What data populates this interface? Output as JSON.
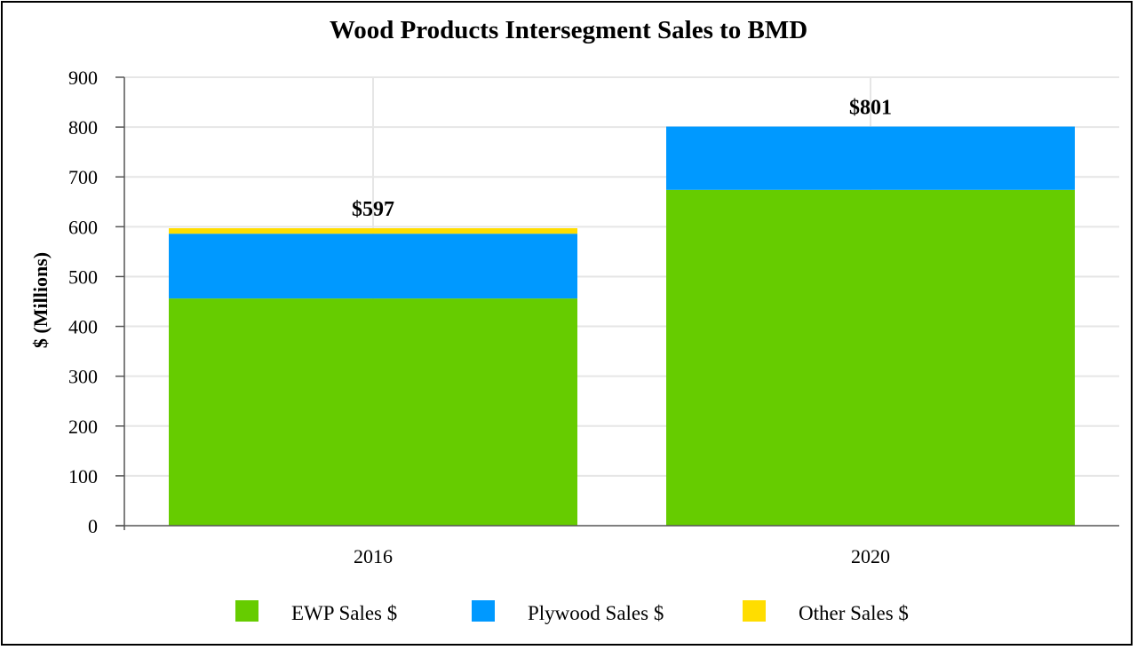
{
  "chart_data": {
    "type": "bar",
    "stacked": true,
    "title": "Wood Products Intersegment Sales to BMD",
    "xlabel": "",
    "ylabel": "$ (Millions)",
    "ylim": [
      0,
      900
    ],
    "yticks": [
      0,
      100,
      200,
      300,
      400,
      500,
      600,
      700,
      800,
      900
    ],
    "categories": [
      "2016",
      "2020"
    ],
    "series": [
      {
        "name": "EWP Sales $",
        "color": "#66cc00",
        "values": [
          456,
          674
        ]
      },
      {
        "name": "Plywood Sales $",
        "color": "#0099ff",
        "values": [
          130,
          127
        ]
      },
      {
        "name": "Other Sales $",
        "color": "#ffdd00",
        "values": [
          11,
          0
        ]
      }
    ],
    "totals": [
      "$597",
      "$801"
    ],
    "legend_position": "bottom",
    "grid": true
  }
}
